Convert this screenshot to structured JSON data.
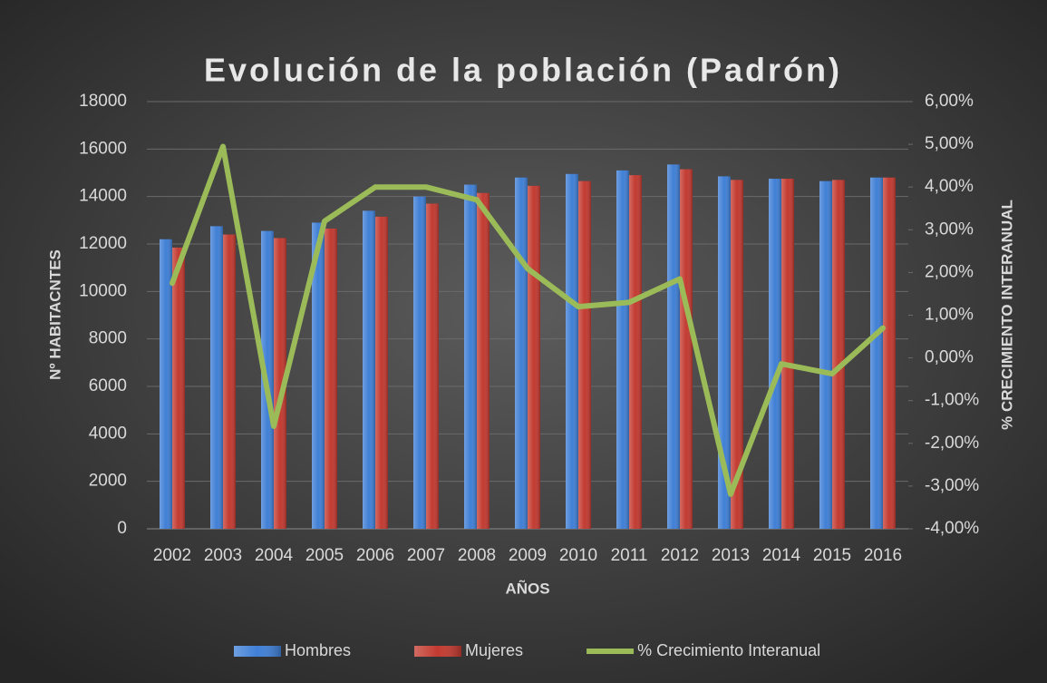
{
  "chart_data": {
    "type": "bar",
    "title": "Evolución de la población (Padrón)",
    "x_label": "AÑOS",
    "y_label": "Nº HABITACNTES",
    "y2_label": "% CRECIMIENTO INTERANUAL",
    "categories": [
      "2002",
      "2003",
      "2004",
      "2005",
      "2006",
      "2007",
      "2008",
      "2009",
      "2010",
      "2011",
      "2012",
      "2013",
      "2014",
      "2015",
      "2016"
    ],
    "series": [
      {
        "name": "Hombres",
        "color": "#3f7fd6",
        "type": "bar",
        "values": [
          12200,
          12750,
          12550,
          12900,
          13400,
          14000,
          14500,
          14800,
          14950,
          15100,
          15350,
          14850,
          14750,
          14650,
          14800
        ]
      },
      {
        "name": "Mujeres",
        "color": "#c23a30",
        "type": "bar",
        "values": [
          11850,
          12400,
          12250,
          12650,
          13150,
          13700,
          14150,
          14450,
          14650,
          14900,
          15150,
          14700,
          14750,
          14700,
          14800
        ]
      },
      {
        "name": "% Crecimiento Interanual",
        "color": "#9bbb59",
        "type": "line",
        "axis": "y2",
        "values": [
          1.75,
          4.95,
          -1.6,
          3.2,
          4.0,
          4.0,
          3.7,
          2.09,
          1.2,
          1.3,
          1.85,
          -3.19,
          -0.14,
          -0.37,
          0.7
        ]
      }
    ],
    "ylim": [
      0,
      18000
    ],
    "yticks": [
      0,
      2000,
      4000,
      6000,
      8000,
      10000,
      12000,
      14000,
      16000,
      18000
    ],
    "y2lim": [
      -4,
      6
    ],
    "y2ticks": [
      {
        "value": -4,
        "label": "-4,00%"
      },
      {
        "value": -3,
        "label": "-3,00%"
      },
      {
        "value": -2,
        "label": "-2,00%"
      },
      {
        "value": -1,
        "label": "-1,00%"
      },
      {
        "value": 0,
        "label": "0,00%"
      },
      {
        "value": 1,
        "label": "1,00%"
      },
      {
        "value": 2,
        "label": "2,00%"
      },
      {
        "value": 3,
        "label": "3,00%"
      },
      {
        "value": 4,
        "label": "4,00%"
      },
      {
        "value": 5,
        "label": "5,00%"
      },
      {
        "value": 6,
        "label": "6,00%"
      }
    ],
    "grid": true,
    "legend": "bottom"
  }
}
